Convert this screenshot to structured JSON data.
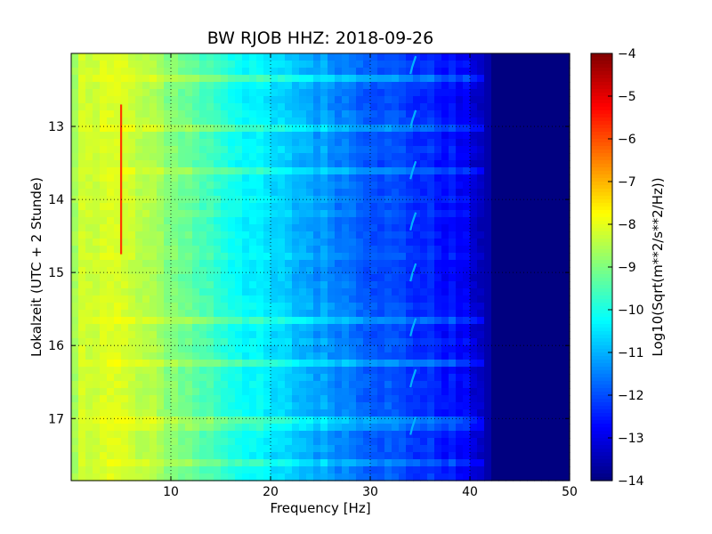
{
  "chart_data": {
    "type": "heatmap",
    "title": "BW RJOB HHZ: 2018-09-26",
    "xlabel": "Frequency [Hz]",
    "ylabel": "Lokalzeit (UTC + 2 Stunde)",
    "xlim": [
      0,
      50
    ],
    "ylim": [
      17.85,
      12.0
    ],
    "x_ticks": [
      10,
      20,
      30,
      40,
      50
    ],
    "y_ticks": [
      13,
      14,
      15,
      16,
      17
    ],
    "grid": true,
    "colormap": "jet",
    "colorbar": {
      "label": "Log10(Sqrt(m**2/s**2/Hz))",
      "range": [
        -14,
        -4
      ],
      "ticks": [
        -4,
        -5,
        -6,
        -7,
        -8,
        -9,
        -10,
        -11,
        -12,
        -13,
        -14
      ]
    },
    "spectrum_profile": {
      "frequency_hz": [
        0,
        1,
        3,
        6,
        10,
        15,
        20,
        25,
        30,
        35,
        38,
        40,
        41.5,
        42.5,
        50
      ],
      "log10_amplitude": [
        -8.9,
        -8.3,
        -8.0,
        -8.3,
        -8.9,
        -9.8,
        -10.6,
        -11.2,
        -11.8,
        -12.3,
        -12.6,
        -13.0,
        -13.4,
        -14.0,
        -14.0
      ]
    },
    "features": {
      "line_5hz": {
        "frequency_hz": 5,
        "time_range": [
          12.7,
          14.75
        ],
        "log10_amplitude": -5.8
      },
      "line_34hz_hooks": {
        "frequency_hz": 34.3,
        "times": [
          12.16,
          12.9,
          13.6,
          14.3,
          15.0,
          15.75,
          16.45,
          17.1
        ],
        "log10_amplitude": -11.0
      }
    }
  }
}
